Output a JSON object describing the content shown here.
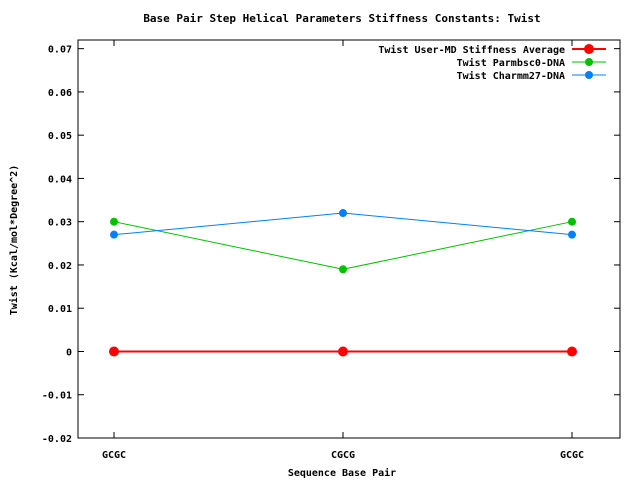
{
  "chart_data": {
    "type": "line",
    "title": "Base Pair Step Helical Parameters Stiffness Constants: Twist",
    "xlabel": "Sequence Base Pair",
    "ylabel": "Twist (Kcal/mol*Degree^2)",
    "categories": [
      "GCGC",
      "CGCG",
      "GCGC"
    ],
    "ylim": [
      -0.02,
      0.072
    ],
    "yticks": [
      {
        "value": 0.07,
        "label": "0.07"
      },
      {
        "value": 0.06,
        "label": "0.06"
      },
      {
        "value": 0.05,
        "label": "0.05"
      },
      {
        "value": 0.04,
        "label": "0.04"
      },
      {
        "value": 0.03,
        "label": "0.03"
      },
      {
        "value": 0.02,
        "label": "0.02"
      },
      {
        "value": 0.01,
        "label": "0.01"
      },
      {
        "value": 0,
        "label": "0"
      },
      {
        "value": -0.01,
        "label": "-0.01"
      },
      {
        "value": -0.02,
        "label": "-0.02"
      }
    ],
    "grid": false,
    "legend_position": "top-right",
    "series": [
      {
        "name": "Twist User-MD Stiffness Average",
        "values": [
          0,
          0,
          0
        ],
        "color": "#ff0000",
        "thick": true
      },
      {
        "name": "Twist Parmbsc0-DNA",
        "values": [
          0.03,
          0.019,
          0.03
        ],
        "color": "#00c000",
        "thick": false
      },
      {
        "name": "Twist Charmm27-DNA",
        "values": [
          0.027,
          0.032,
          0.027
        ],
        "color": "#0080ff",
        "thick": false
      }
    ]
  }
}
